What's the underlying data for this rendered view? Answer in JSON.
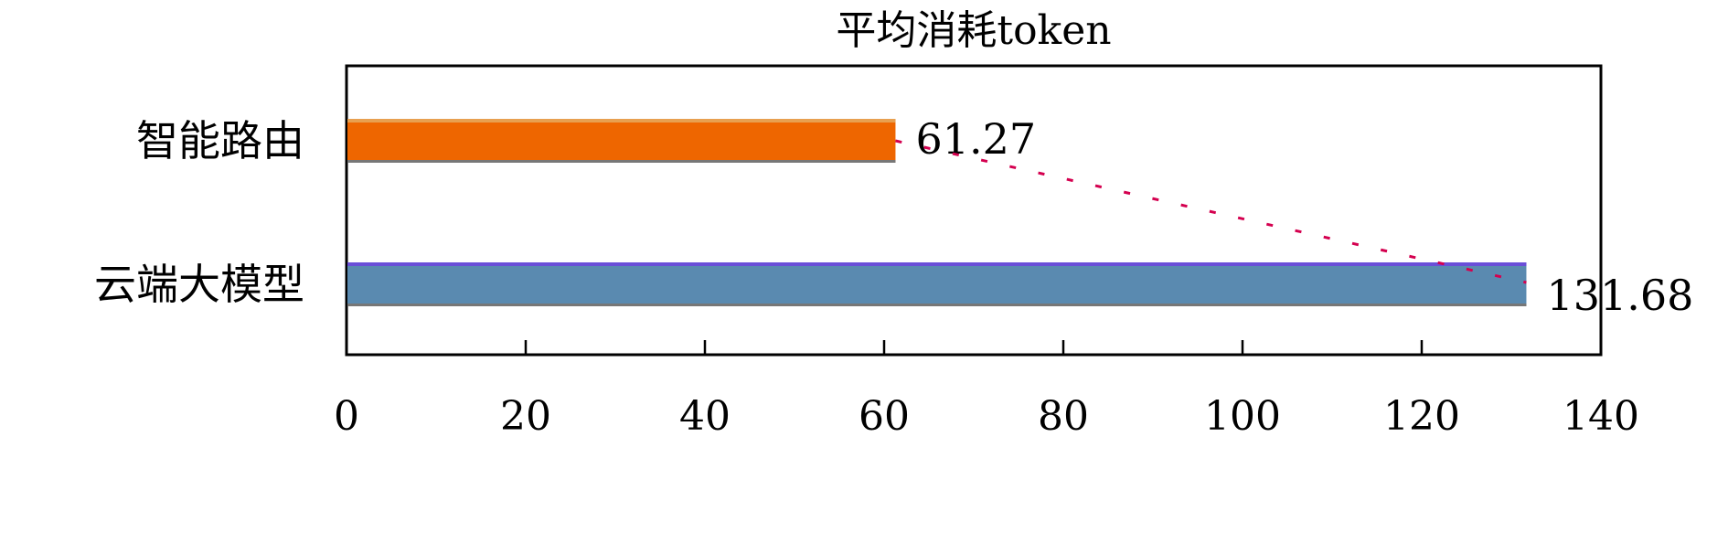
{
  "chart_data": {
    "type": "bar",
    "orientation": "horizontal",
    "title": "平均消耗token",
    "categories": [
      "智能路由",
      "云端大模型"
    ],
    "values": [
      61.27,
      131.68
    ],
    "data_labels": [
      "61.27",
      "131.68"
    ],
    "bar_colors": [
      "#ee6600",
      "#5a8ab0"
    ],
    "bar_top_edge_colors": [
      "#e8a050",
      "#6a4fd8"
    ],
    "connector_line": {
      "style": "dashed",
      "color": "#d4004f",
      "from": "智能路由",
      "to": "云端大模型"
    },
    "xlabel": "",
    "ylabel": "",
    "xlim": [
      0,
      140
    ],
    "xticks": [
      0,
      20,
      40,
      60,
      80,
      100,
      120,
      140
    ],
    "xtick_labels": [
      "0",
      "20",
      "40",
      "60",
      "80",
      "100",
      "120",
      "140"
    ],
    "grid": false,
    "legend": "none"
  }
}
